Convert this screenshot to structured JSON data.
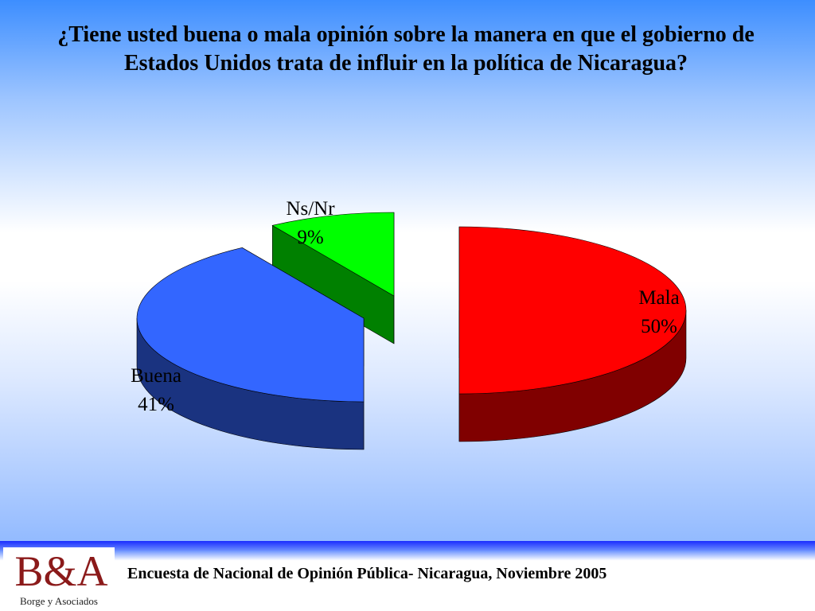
{
  "slide": {
    "title": "¿Tiene usted buena o mala opinión sobre la manera en que el gobierno de Estados Unidos trata de influir en la política de Nicaragua?"
  },
  "chart_data": {
    "type": "pie",
    "title": "¿Tiene usted buena o mala opinión sobre la manera en que el gobierno de Estados Unidos trata de influir en la política de Nicaragua?",
    "categories": [
      "Mala",
      "Buena",
      "Ns/Nr"
    ],
    "values": [
      50,
      41,
      9
    ],
    "value_labels": [
      "50%",
      "41%",
      "9%"
    ],
    "colors": {
      "Mala": {
        "top": "#ff0000",
        "side": "#800000"
      },
      "Buena": {
        "top": "#3366ff",
        "side": "#1a3380"
      },
      "Ns/Nr": {
        "top": "#00ff00",
        "side": "#008000"
      }
    },
    "style": "3d-exploded"
  },
  "footer": {
    "logo_mark": "B&A",
    "logo_sub": "Borge y Asociados",
    "survey_text": "Encuesta de Nacional de Opinión Pública- Nicaragua, Noviembre 2005"
  }
}
